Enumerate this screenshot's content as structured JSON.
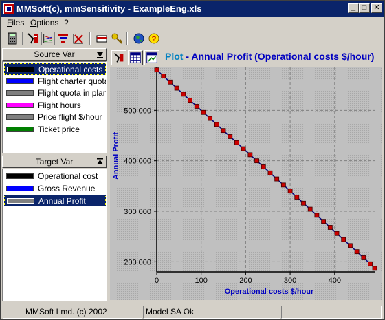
{
  "window": {
    "title": "MMSoft(c), mmSensitivity - ExampleEng.xls",
    "min": "_",
    "max": "□",
    "close": "✕"
  },
  "menu": [
    {
      "accel": "F",
      "rest": "iles"
    },
    {
      "accel": "O",
      "rest": "ptions"
    },
    {
      "accel": "",
      "rest": "?"
    }
  ],
  "toolbar_icons": [
    "calculator-icon",
    "sensitivity-icon",
    "chart-lines-icon",
    "funnel-chart-icon",
    "chart-cross-icon",
    "card-icon",
    "key-icon",
    "globe-icon",
    "help-icon"
  ],
  "source_var": {
    "header": "Source Var",
    "items": [
      {
        "label": "Operational costs $/hour",
        "color": "#000000",
        "selected": true
      },
      {
        "label": "Flight charter quota",
        "color": "#0000ff",
        "selected": false
      },
      {
        "label": "Flight quota in planned",
        "color": "#808080",
        "selected": false
      },
      {
        "label": "Flight hours",
        "color": "#ff00ff",
        "selected": false
      },
      {
        "label": "Price flight $/hour",
        "color": "#808080",
        "selected": false
      },
      {
        "label": "Ticket price",
        "color": "#008000",
        "selected": false
      }
    ]
  },
  "target_var": {
    "header": "Target Var",
    "items": [
      {
        "label": "Operational cost",
        "color": "#000000",
        "selected": false
      },
      {
        "label": "Gross Revenue",
        "color": "#0000ff",
        "selected": false
      },
      {
        "label": "Annual Profit",
        "color": "#808080",
        "selected": true
      }
    ]
  },
  "plot": {
    "title_prefix": "Plot",
    "title_sep": " - ",
    "title_main": "Annual Profit (Operational costs $/hour)"
  },
  "chart_data": {
    "type": "line",
    "xlabel": "Operational costs $/hour",
    "ylabel": "Annual Profit",
    "xlim": [
      0,
      490
    ],
    "ylim": [
      180000,
      585000
    ],
    "x_ticks": [
      0,
      100,
      200,
      300,
      400
    ],
    "x_tick_labels": [
      "0",
      "100",
      "200",
      "300",
      "400"
    ],
    "y_ticks": [
      200000,
      300000,
      400000,
      500000
    ],
    "y_tick_labels": [
      "200 000",
      "300 000",
      "400 000",
      "500 000"
    ],
    "grid": true,
    "series": [
      {
        "line_color": "#000080",
        "marker_color": "#cc0000",
        "x": [
          0,
          15,
          30,
          45,
          60,
          75,
          90,
          105,
          120,
          135,
          150,
          165,
          180,
          195,
          210,
          225,
          240,
          255,
          270,
          285,
          300,
          315,
          330,
          345,
          360,
          375,
          390,
          405,
          420,
          435,
          450,
          465,
          480,
          490
        ],
        "y": [
          580000,
          568000,
          556000,
          544000,
          532000,
          520000,
          508000,
          496000,
          484000,
          472000,
          460000,
          448000,
          436000,
          424000,
          412000,
          400000,
          388000,
          376000,
          364000,
          352000,
          340000,
          328000,
          316000,
          304000,
          292000,
          280000,
          268000,
          256000,
          244000,
          232000,
          220000,
          208000,
          196000,
          187000
        ]
      }
    ]
  },
  "status": {
    "left": "MMSoft Lmd. (c) 2002",
    "right": "Model SA Ok"
  }
}
